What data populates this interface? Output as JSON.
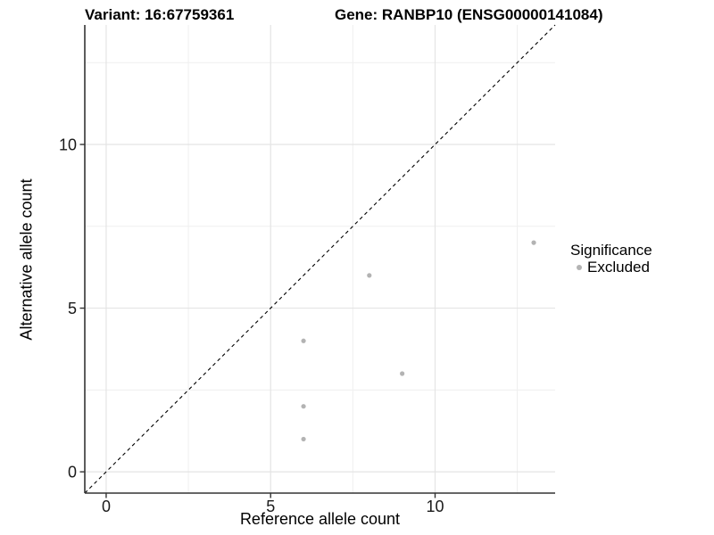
{
  "chart_data": {
    "type": "scatter",
    "title_variant": "Variant: 16:67759361",
    "title_gene": "Gene: RANBP10 (ENSG00000141084)",
    "xlabel": "Reference allele count",
    "ylabel": "Alternative allele count",
    "xlim": [
      -0.65,
      13.65
    ],
    "ylim": [
      -0.65,
      13.65
    ],
    "xticks": [
      0,
      5,
      10
    ],
    "yticks": [
      0,
      5,
      10
    ],
    "minor_ticks": [
      2.5,
      7.5,
      12.5
    ],
    "grid": "major+minor",
    "reference_line": {
      "type": "identity y=x",
      "style": "dashed",
      "color": "#000000"
    },
    "series": [
      {
        "name": "Excluded",
        "color": "#b3b3b3",
        "marker": "circle",
        "points": [
          [
            6,
            1
          ],
          [
            6,
            2
          ],
          [
            6,
            4
          ],
          [
            8,
            6
          ],
          [
            9,
            3
          ],
          [
            13,
            7
          ]
        ]
      }
    ],
    "legend": {
      "title": "Significance",
      "position": "right",
      "items": [
        {
          "label": "Excluded",
          "color": "#b3b3b3"
        }
      ]
    }
  },
  "colors": {
    "background": "#ffffff",
    "grid_major": "#e4e4e4",
    "grid_minor": "#efefef",
    "axis_line": "#333333",
    "tick_label": "#1a1a1a",
    "text": "#000000"
  }
}
